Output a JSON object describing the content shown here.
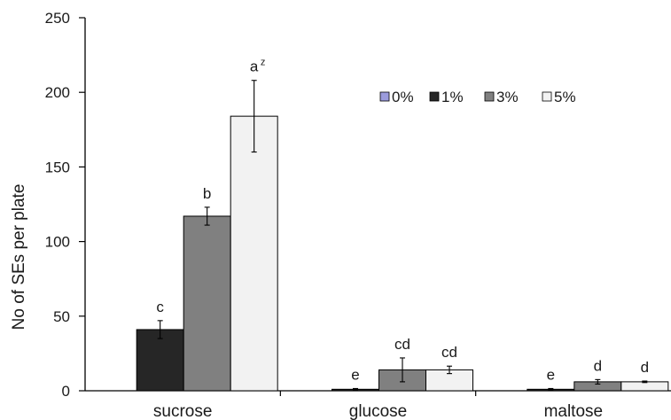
{
  "chart_data": {
    "type": "bar",
    "ylabel": "No of SEs per plate",
    "ylim": [
      0,
      250
    ],
    "yticks": [
      0,
      50,
      100,
      150,
      200,
      250
    ],
    "categories": [
      "sucrose",
      "glucose",
      "maltose"
    ],
    "series": [
      {
        "name": "0%",
        "color": "#9b9bdc",
        "values": [
          0,
          0,
          0
        ],
        "errors": [
          0,
          0,
          0
        ],
        "labels": [
          "",
          "",
          ""
        ]
      },
      {
        "name": "1%",
        "color": "#262626",
        "values": [
          41,
          1,
          1
        ],
        "errors": [
          6,
          0.5,
          0.5
        ],
        "labels": [
          "c",
          "e",
          "e"
        ]
      },
      {
        "name": "3%",
        "color": "#808080",
        "values": [
          117,
          14,
          6
        ],
        "errors": [
          6,
          8,
          1.5
        ],
        "labels": [
          "b",
          "cd",
          "d"
        ]
      },
      {
        "name": "5%",
        "color": "#f2f2f2",
        "values": [
          184,
          14,
          6
        ],
        "errors": [
          24,
          2.5,
          0.5
        ],
        "labels": [
          "a",
          "cd",
          "d"
        ]
      }
    ],
    "superscript": {
      "series": 3,
      "category": 0,
      "text": "z"
    },
    "legend_position": "top-right",
    "grid": false
  }
}
